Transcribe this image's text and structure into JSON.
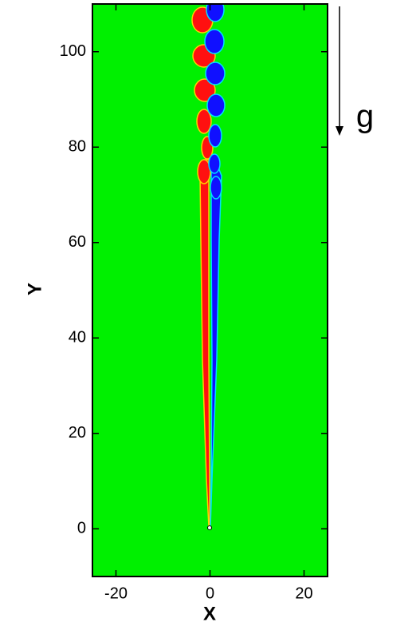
{
  "chart_data": {
    "type": "contour",
    "xlabel": "X",
    "ylabel": "Y",
    "xlim": [
      -25,
      25
    ],
    "ylim": [
      -10,
      110
    ],
    "xticks": [
      -20,
      0,
      20
    ],
    "yticks": [
      0,
      20,
      40,
      60,
      80,
      100
    ],
    "annotation": "g"
  }
}
